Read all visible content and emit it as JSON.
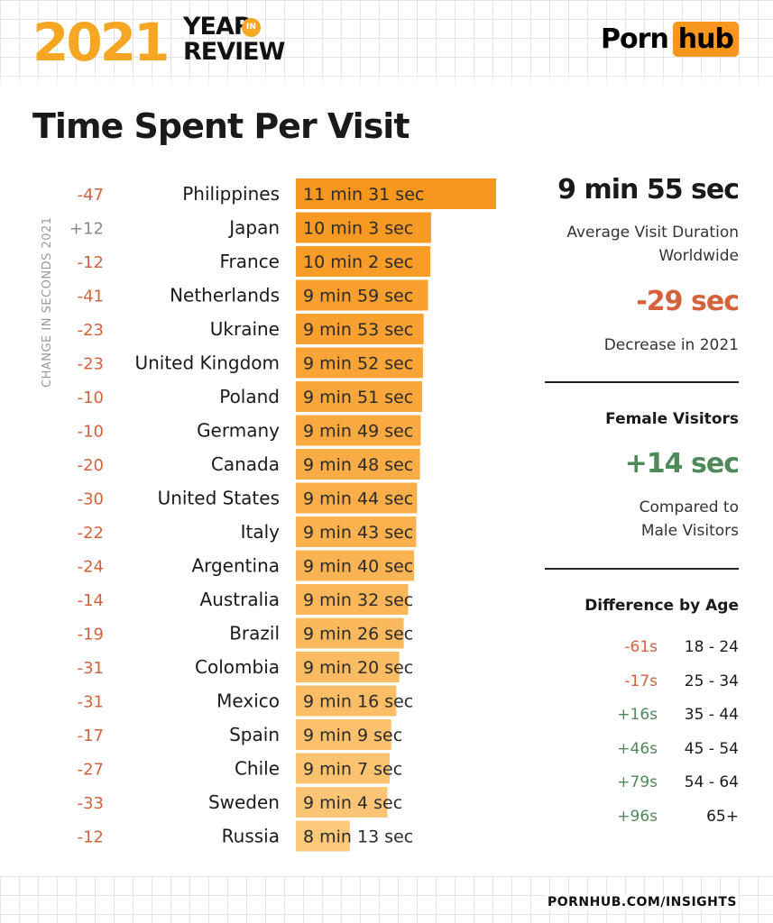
{
  "header": {
    "year": "2021",
    "year_word": "YEAR",
    "in_word": "IN",
    "review_word": "REVIEW",
    "brand_left": "Porn",
    "brand_right": "hub"
  },
  "page_title": "Time Spent Per Visit",
  "side_label": "CHANGE IN SECONDS 2021",
  "colors": {
    "accent": "#f7971e",
    "negative": "#d4623c",
    "positive": "#4e8a5a",
    "bar_dark": "#f7971e",
    "bar_light": "#fcc87a"
  },
  "chart_data": {
    "type": "bar",
    "orientation": "horizontal",
    "categories": [
      "Philippines",
      "Japan",
      "France",
      "Netherlands",
      "Ukraine",
      "United Kingdom",
      "Poland",
      "Germany",
      "Canada",
      "United States",
      "Italy",
      "Argentina",
      "Australia",
      "Brazil",
      "Colombia",
      "Mexico",
      "Spain",
      "Chile",
      "Sweden",
      "Russia"
    ],
    "values": [
      691,
      603,
      602,
      599,
      593,
      592,
      591,
      589,
      588,
      584,
      583,
      580,
      572,
      566,
      560,
      556,
      549,
      547,
      544,
      493
    ],
    "value_unit": "seconds",
    "value_labels": [
      "11 min 31 sec",
      "10 min 3 sec",
      "10 min 2 sec",
      "9 min 59 sec",
      "9 min 53 sec",
      "9 min 52 sec",
      "9 min 51 sec",
      "9 min 49 sec",
      "9 min 48 sec",
      "9 min 44 sec",
      "9 min 43 sec",
      "9 min 40 sec",
      "9 min 32 sec",
      "9 min 26 sec",
      "9 min 20 sec",
      "9 min 16 sec",
      "9 min 9 sec",
      "9 min 7 sec",
      "9 min 4 sec",
      "8 min 13 sec"
    ],
    "change": [
      "-47",
      "+12",
      "-12",
      "-41",
      "-23",
      "-23",
      "-10",
      "-10",
      "-20",
      "-30",
      "-22",
      "-24",
      "-14",
      "-19",
      "-31",
      "-31",
      "-17",
      "-27",
      "-33",
      "-12"
    ]
  },
  "summary": {
    "avg_value": "9 min 55 sec",
    "avg_label_1": "Average Visit Duration",
    "avg_label_2": "Worldwide",
    "decrease_value": "-29 sec",
    "decrease_label": "Decrease in 2021",
    "female_heading": "Female Visitors",
    "female_value": "+14 sec",
    "female_label_1": "Compared to",
    "female_label_2": "Male Visitors",
    "age_heading": "Difference by Age",
    "age_rows": [
      {
        "diff": "-61s",
        "range": "18 - 24"
      },
      {
        "diff": "-17s",
        "range": "25 - 34"
      },
      {
        "diff": "+16s",
        "range": "35 - 44"
      },
      {
        "diff": "+46s",
        "range": "45 - 54"
      },
      {
        "diff": "+79s",
        "range": "54 - 64"
      },
      {
        "diff": "+96s",
        "range": "65+"
      }
    ]
  },
  "footer": "PORNHUB.COM/INSIGHTS"
}
